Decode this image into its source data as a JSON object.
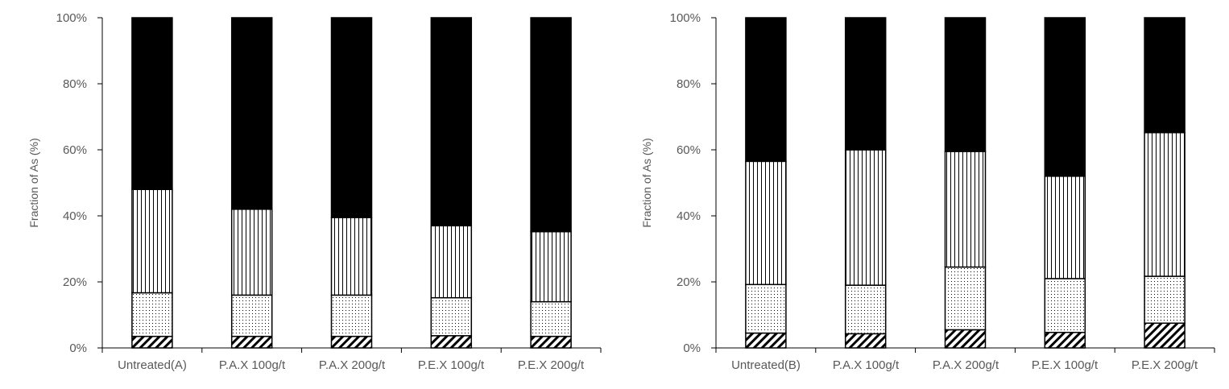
{
  "chart_data": [
    {
      "type": "bar",
      "stacked": true,
      "ylabel": "Fraction of As (%)",
      "ylim": [
        0,
        100
      ],
      "yticks": [
        "0%",
        "20%",
        "40%",
        "60%",
        "80%",
        "100%"
      ],
      "categories": [
        "Untreated(A)",
        "P.A.X 100g/t",
        "P.A.X 200g/t",
        "P.E.X 100g/t",
        "P.E.X 200g/t"
      ],
      "series": [
        {
          "pattern": "diagonal-hatch",
          "values": [
            3.5,
            3.5,
            3.5,
            3.7,
            3.5
          ]
        },
        {
          "pattern": "dots",
          "values": [
            13.2,
            12.5,
            12.5,
            11.5,
            10.5
          ]
        },
        {
          "pattern": "vertical-lines",
          "values": [
            31.3,
            26.0,
            23.5,
            21.8,
            21.2
          ]
        },
        {
          "pattern": "solid-black",
          "values": [
            52.0,
            58.0,
            60.5,
            63.0,
            64.8
          ]
        }
      ],
      "grid": false,
      "legend": "none"
    },
    {
      "type": "bar",
      "stacked": true,
      "ylabel": "Fraction of As (%)",
      "ylim": [
        0,
        100
      ],
      "yticks": [
        "0%",
        "20%",
        "40%",
        "60%",
        "80%",
        "100%"
      ],
      "categories": [
        "Untreated(B)",
        "P.A.X 100g/t",
        "P.A.X 200g/t",
        "P.E.X 100g/t",
        "P.E.X 200g/t"
      ],
      "series": [
        {
          "pattern": "diagonal-hatch",
          "values": [
            4.5,
            4.3,
            5.5,
            4.7,
            7.5
          ]
        },
        {
          "pattern": "dots",
          "values": [
            14.7,
            14.7,
            19.0,
            16.3,
            14.2
          ]
        },
        {
          "pattern": "vertical-lines",
          "values": [
            37.3,
            41.0,
            35.0,
            31.0,
            43.5
          ]
        },
        {
          "pattern": "solid-black",
          "values": [
            43.5,
            40.0,
            40.5,
            48.0,
            34.8
          ]
        }
      ],
      "grid": false,
      "legend": "none"
    }
  ]
}
